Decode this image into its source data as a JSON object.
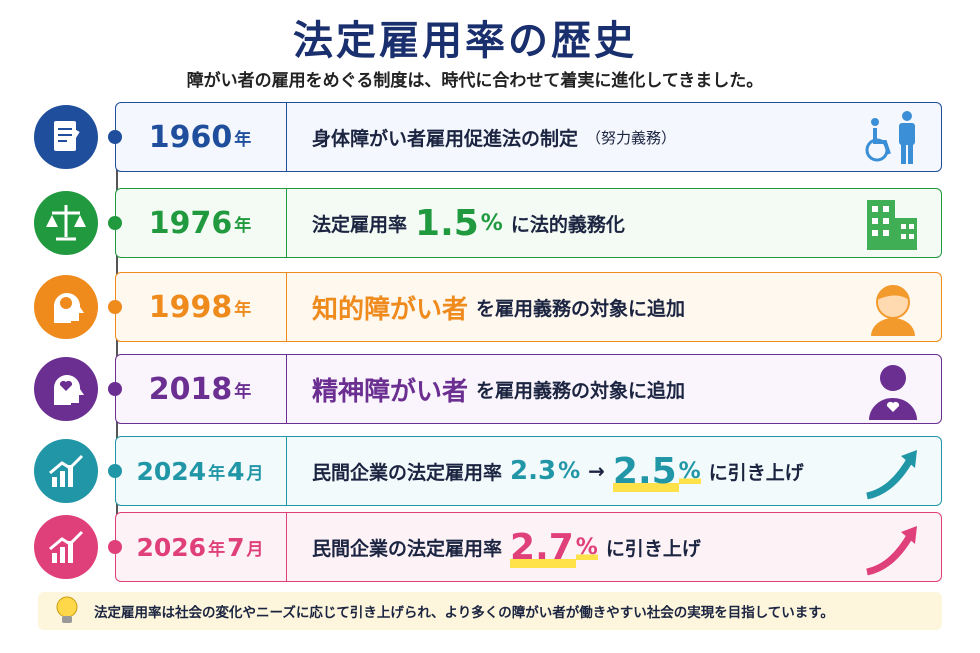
{
  "header": {
    "title": "法定雇用率の歴史",
    "subtitle": "障がい者の雇用をめぐる制度は、時代に合わせて着実に進化してきました。"
  },
  "rows": [
    {
      "year": [
        "1960",
        "年"
      ],
      "segments": [
        {
          "text": "身体障がい者雇用促進法の制定",
          "style": "text"
        },
        {
          "text": "（努力義務）",
          "style": "sub"
        }
      ]
    },
    {
      "year": [
        "1976",
        "年"
      ],
      "segments": [
        {
          "text": "法定雇用率",
          "style": "text"
        },
        {
          "text": "1.5",
          "style": "big"
        },
        {
          "text": "%",
          "style": "pct"
        },
        {
          "text": "に法的義務化",
          "style": "text"
        }
      ]
    },
    {
      "year": [
        "1998",
        "年"
      ],
      "segments": [
        {
          "text": "知的障がい者",
          "style": "accent"
        },
        {
          "text": "を雇用義務の対象に追加",
          "style": "text"
        }
      ]
    },
    {
      "year": [
        "2018",
        "年"
      ],
      "segments": [
        {
          "text": "精神障がい者",
          "style": "accent"
        },
        {
          "text": "を雇用義務の対象に追加",
          "style": "text"
        }
      ]
    },
    {
      "year": [
        "2024",
        "年",
        "4",
        "月"
      ],
      "segments": [
        {
          "text": "民間企業の法定雇用率",
          "style": "text"
        },
        {
          "text": "2.3",
          "style": "num"
        },
        {
          "text": "%",
          "style": "pct"
        },
        {
          "text": "→",
          "style": "arrow"
        },
        {
          "text": "2.5",
          "style": "big-hl"
        },
        {
          "text": "%",
          "style": "pct-hl"
        },
        {
          "text": "に引き上げ",
          "style": "text"
        }
      ]
    },
    {
      "year": [
        "2026",
        "年",
        "7",
        "月"
      ],
      "segments": [
        {
          "text": "民間企業の法定雇用率",
          "style": "text"
        },
        {
          "text": "2.7",
          "style": "big-hl"
        },
        {
          "text": "%",
          "style": "pct-hl"
        },
        {
          "text": "に引き上げ",
          "style": "text"
        }
      ]
    }
  ],
  "footer": "法定雇用率は社会の変化やニーズに応じて引き上げられ、より多くの障がい者が働きやすい社会の実現を目指しています。"
}
